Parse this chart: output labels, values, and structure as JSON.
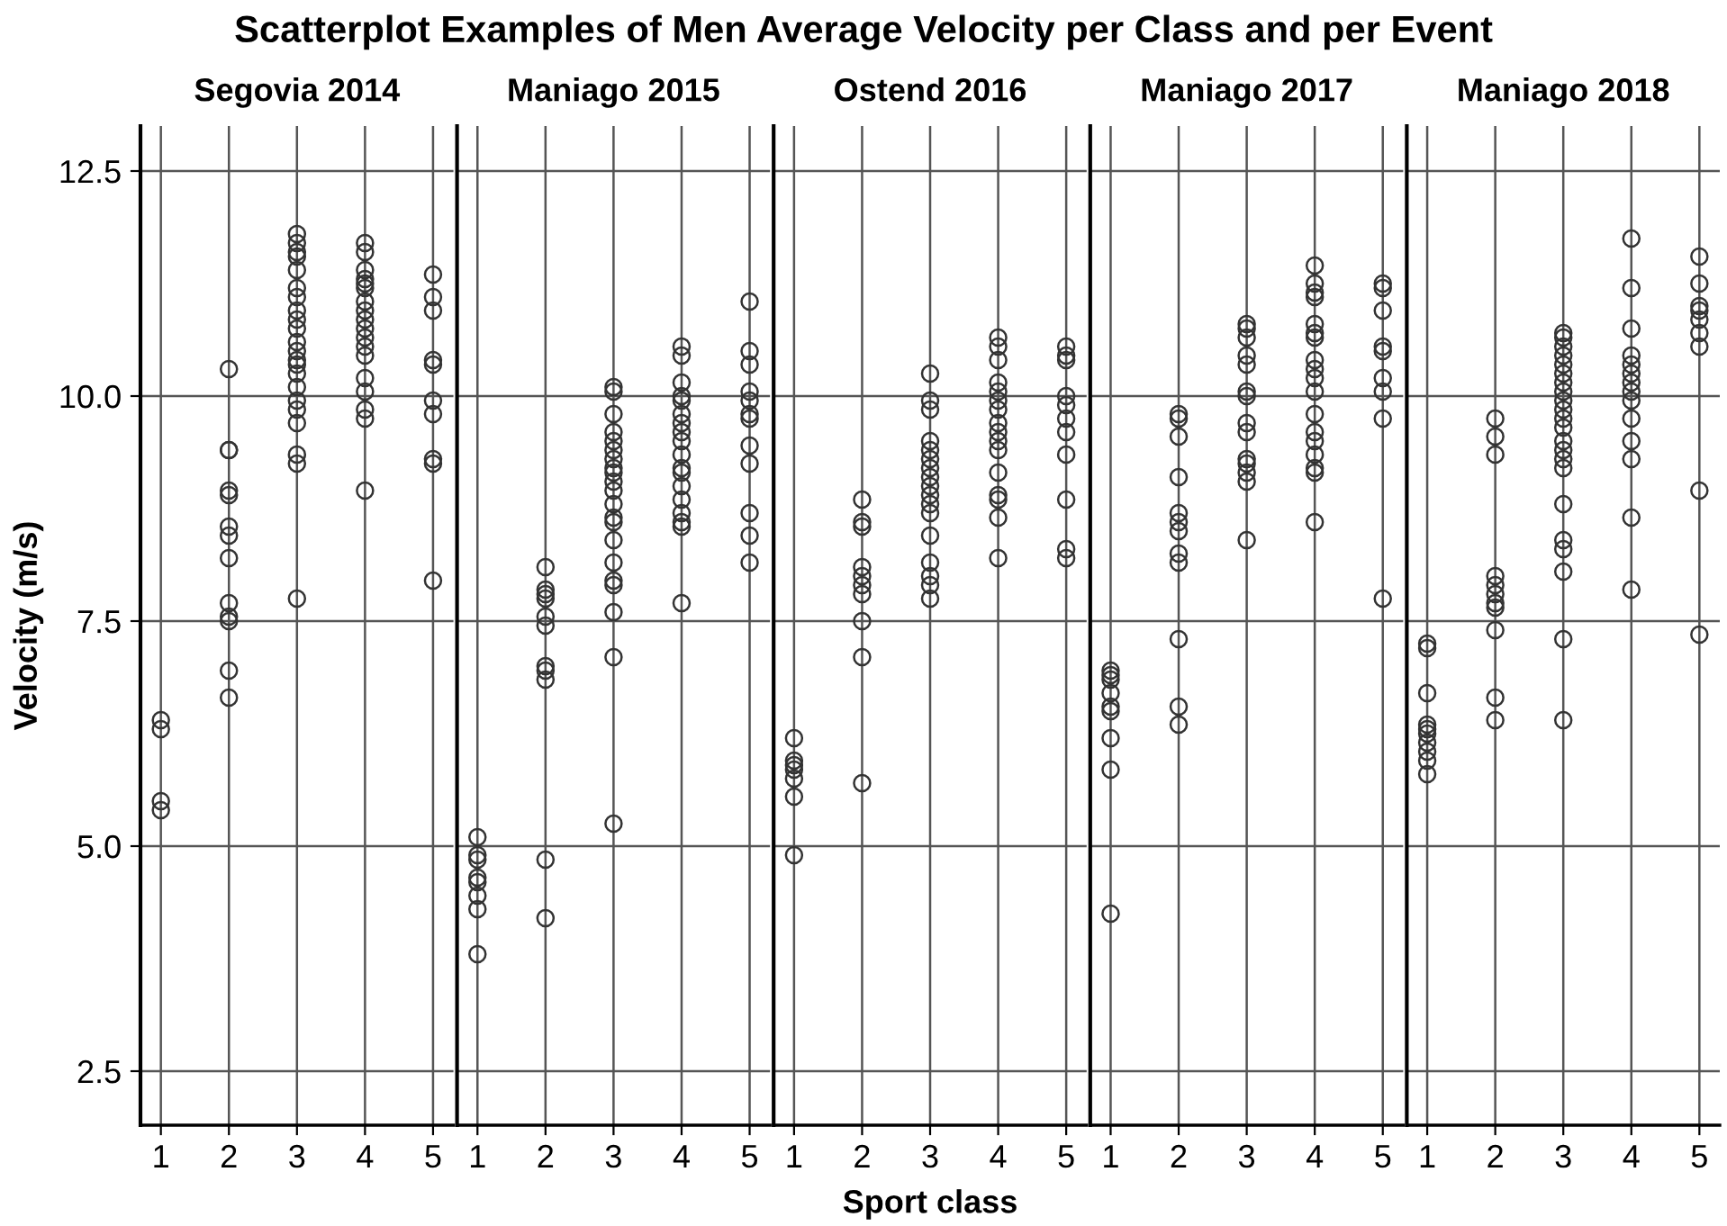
{
  "chart_data": [
    {
      "type": "scatter",
      "title": "Scatterplot Examples of Men Average Velocity per Class and per Event",
      "subtitle": "Segovia 2014",
      "ylabel": "Velocity (m/s)",
      "xlim": [
        0.7,
        5.3
      ],
      "ylim": [
        1.9,
        13.0
      ],
      "xticks": [
        1,
        2,
        3,
        4,
        5
      ],
      "yticks": [
        {
          "value": 2.5,
          "label": "2.5"
        },
        {
          "value": 5,
          "label": "5.0"
        },
        {
          "value": 7.5,
          "label": "7.5"
        },
        {
          "value": 10,
          "label": "10.0"
        },
        {
          "value": 12.5,
          "label": "12.5"
        }
      ],
      "grid": true,
      "marker": "circle",
      "series": [
        {
          "color": "#333333",
          "x": [
            1,
            1,
            1,
            1,
            2,
            2,
            2,
            2,
            2,
            2,
            2,
            2,
            2,
            2,
            2,
            2,
            2,
            3,
            3,
            3,
            3,
            3,
            3,
            3,
            3,
            3,
            3,
            3,
            3,
            3,
            3,
            3,
            3,
            3,
            3,
            3,
            3,
            3,
            3,
            4,
            4,
            4,
            4,
            4,
            4,
            4,
            4,
            4,
            4,
            4,
            4,
            4,
            4,
            4,
            4,
            4,
            4,
            5,
            5,
            5,
            5,
            5,
            5,
            5,
            5,
            5,
            5
          ],
          "values": [
            6.4,
            6.3,
            5.5,
            5.4,
            10.3,
            9.4,
            9.4,
            8.95,
            8.9,
            8.55,
            8.45,
            8.2,
            7.7,
            7.55,
            7.5,
            6.95,
            6.65,
            11.8,
            11.7,
            11.6,
            11.55,
            11.4,
            11.2,
            11.1,
            10.95,
            10.85,
            10.75,
            10.6,
            10.5,
            10.4,
            10.35,
            10.25,
            10.1,
            9.95,
            9.85,
            9.7,
            9.35,
            9.25,
            7.75,
            11.7,
            11.6,
            11.4,
            11.3,
            11.25,
            11.2,
            11.05,
            10.95,
            10.85,
            10.75,
            10.65,
            10.55,
            10.45,
            10.2,
            10.05,
            9.85,
            9.75,
            8.95,
            11.35,
            11.1,
            10.95,
            10.4,
            10.35,
            9.95,
            9.8,
            9.3,
            9.25,
            7.95
          ]
        }
      ]
    },
    {
      "type": "scatter",
      "subtitle": "Maniago 2015",
      "xlim": [
        0.7,
        5.3
      ],
      "ylim": [
        1.9,
        13.0
      ],
      "xticks": [
        1,
        2,
        3,
        4,
        5
      ],
      "tick_labels": "x",
      "grid": true,
      "marker": "circle",
      "series": [
        {
          "color": "#333333",
          "x": [
            1,
            1,
            1,
            1,
            1,
            1,
            1,
            1,
            2,
            2,
            2,
            2,
            2,
            2,
            2,
            2,
            2,
            2,
            2,
            3,
            3,
            3,
            3,
            3,
            3,
            3,
            3,
            3,
            3,
            3,
            3,
            3,
            3,
            3,
            3,
            3,
            3,
            3,
            3,
            3,
            4,
            4,
            4,
            4,
            4,
            4,
            4,
            4,
            4,
            4,
            4,
            4,
            4,
            4,
            4,
            4,
            4,
            4,
            5,
            5,
            5,
            5,
            5,
            5,
            5,
            5,
            5,
            5,
            5,
            5
          ],
          "values": [
            5.1,
            4.9,
            4.85,
            4.65,
            4.6,
            4.45,
            4.3,
            3.8,
            8.1,
            7.85,
            7.8,
            7.75,
            7.55,
            7.45,
            7.0,
            6.95,
            6.85,
            4.85,
            4.2,
            10.1,
            10.05,
            9.8,
            9.6,
            9.5,
            9.4,
            9.3,
            9.2,
            9.15,
            9.05,
            8.95,
            8.8,
            8.65,
            8.6,
            8.4,
            8.15,
            7.95,
            7.9,
            7.6,
            7.1,
            5.25,
            10.55,
            10.45,
            10.15,
            10.0,
            9.95,
            9.8,
            9.7,
            9.6,
            9.5,
            9.35,
            9.2,
            9.15,
            9.0,
            8.85,
            8.7,
            8.6,
            8.55,
            7.7,
            11.05,
            10.5,
            10.35,
            10.05,
            9.95,
            9.8,
            9.75,
            9.45,
            9.25,
            8.7,
            8.45,
            8.15
          ]
        }
      ]
    },
    {
      "type": "scatter",
      "subtitle": "Ostend 2016",
      "xlabel": "Sport class",
      "xlim": [
        0.7,
        5.3
      ],
      "ylim": [
        1.9,
        13.0
      ],
      "xticks": [
        1,
        2,
        3,
        4,
        5
      ],
      "tick_labels": "x",
      "grid": true,
      "marker": "circle",
      "series": [
        {
          "color": "#333333",
          "x": [
            1,
            1,
            1,
            1,
            1,
            1,
            1,
            2,
            2,
            2,
            2,
            2,
            2,
            2,
            2,
            2,
            2,
            3,
            3,
            3,
            3,
            3,
            3,
            3,
            3,
            3,
            3,
            3,
            3,
            3,
            3,
            3,
            3,
            3,
            4,
            4,
            4,
            4,
            4,
            4,
            4,
            4,
            4,
            4,
            4,
            4,
            4,
            4,
            4,
            4,
            5,
            5,
            5,
            5,
            5,
            5,
            5,
            5,
            5,
            5,
            5
          ],
          "values": [
            6.2,
            5.95,
            5.9,
            5.85,
            5.75,
            5.55,
            4.9,
            8.85,
            8.6,
            8.55,
            8.1,
            8.0,
            7.9,
            7.8,
            7.5,
            7.1,
            5.7,
            10.25,
            9.95,
            9.85,
            9.5,
            9.4,
            9.3,
            9.2,
            9.1,
            9.0,
            8.9,
            8.8,
            8.7,
            8.45,
            8.15,
            8.0,
            7.9,
            7.75,
            10.65,
            10.55,
            10.4,
            10.15,
            10.05,
            9.95,
            9.85,
            9.7,
            9.6,
            9.5,
            9.4,
            9.15,
            8.9,
            8.85,
            8.65,
            8.2,
            10.55,
            10.45,
            10.4,
            10.0,
            9.9,
            9.75,
            9.6,
            9.35,
            8.85,
            8.3,
            8.2
          ]
        }
      ]
    },
    {
      "type": "scatter",
      "subtitle": "Maniago 2017",
      "xlim": [
        0.7,
        5.3
      ],
      "ylim": [
        1.9,
        13.0
      ],
      "xticks": [
        1,
        2,
        3,
        4,
        5
      ],
      "tick_labels": "x",
      "grid": true,
      "marker": "circle",
      "series": [
        {
          "color": "#333333",
          "x": [
            1,
            1,
            1,
            1,
            1,
            1,
            1,
            1,
            1,
            2,
            2,
            2,
            2,
            2,
            2,
            2,
            2,
            2,
            2,
            2,
            2,
            3,
            3,
            3,
            3,
            3,
            3,
            3,
            3,
            3,
            3,
            3,
            3,
            3,
            3,
            4,
            4,
            4,
            4,
            4,
            4,
            4,
            4,
            4,
            4,
            4,
            4,
            4,
            4,
            4,
            4,
            4,
            4,
            5,
            5,
            5,
            5,
            5,
            5,
            5,
            5,
            5
          ],
          "values": [
            6.95,
            6.9,
            6.85,
            6.7,
            6.55,
            6.5,
            6.2,
            5.85,
            4.25,
            9.8,
            9.75,
            9.55,
            9.1,
            8.7,
            8.6,
            8.5,
            8.25,
            8.15,
            7.3,
            6.55,
            6.35,
            10.8,
            10.75,
            10.65,
            10.45,
            10.35,
            10.05,
            10.0,
            9.7,
            9.6,
            9.3,
            9.25,
            9.15,
            9.05,
            8.4,
            11.45,
            11.25,
            11.15,
            11.1,
            10.8,
            10.7,
            10.65,
            10.4,
            10.3,
            10.2,
            10.05,
            9.8,
            9.6,
            9.5,
            9.35,
            9.2,
            9.15,
            8.6,
            11.25,
            11.2,
            10.95,
            10.55,
            10.5,
            10.2,
            10.05,
            9.75,
            7.75
          ]
        }
      ]
    },
    {
      "type": "scatter",
      "subtitle": "Maniago 2018",
      "xlim": [
        0.7,
        5.3
      ],
      "ylim": [
        1.9,
        13.0
      ],
      "xticks": [
        1,
        2,
        3,
        4,
        5
      ],
      "tick_labels": "x",
      "grid": true,
      "marker": "circle",
      "series": [
        {
          "color": "#333333",
          "x": [
            1,
            1,
            1,
            1,
            1,
            1,
            1,
            1,
            1,
            1,
            2,
            2,
            2,
            2,
            2,
            2,
            2,
            2,
            2,
            2,
            2,
            3,
            3,
            3,
            3,
            3,
            3,
            3,
            3,
            3,
            3,
            3,
            3,
            3,
            3,
            3,
            3,
            3,
            3,
            3,
            3,
            3,
            3,
            4,
            4,
            4,
            4,
            4,
            4,
            4,
            4,
            4,
            4,
            4,
            4,
            4,
            4,
            5,
            5,
            5,
            5,
            5,
            5,
            5,
            5,
            5
          ],
          "values": [
            7.25,
            7.2,
            6.7,
            6.35,
            6.3,
            6.25,
            6.15,
            6.05,
            5.95,
            5.8,
            9.75,
            9.55,
            9.35,
            8.0,
            7.9,
            7.8,
            7.7,
            7.65,
            7.4,
            6.65,
            6.4,
            10.7,
            10.65,
            10.55,
            10.45,
            10.35,
            10.25,
            10.15,
            10.05,
            9.95,
            9.85,
            9.75,
            9.65,
            9.5,
            9.4,
            9.3,
            9.2,
            8.8,
            8.4,
            8.3,
            8.05,
            7.3,
            6.4,
            11.75,
            11.2,
            10.75,
            10.45,
            10.35,
            10.25,
            10.15,
            10.05,
            9.95,
            9.75,
            9.5,
            9.3,
            8.65,
            7.85,
            11.55,
            11.25,
            11.0,
            10.95,
            10.85,
            10.7,
            10.55,
            8.95,
            7.35
          ]
        }
      ]
    }
  ]
}
